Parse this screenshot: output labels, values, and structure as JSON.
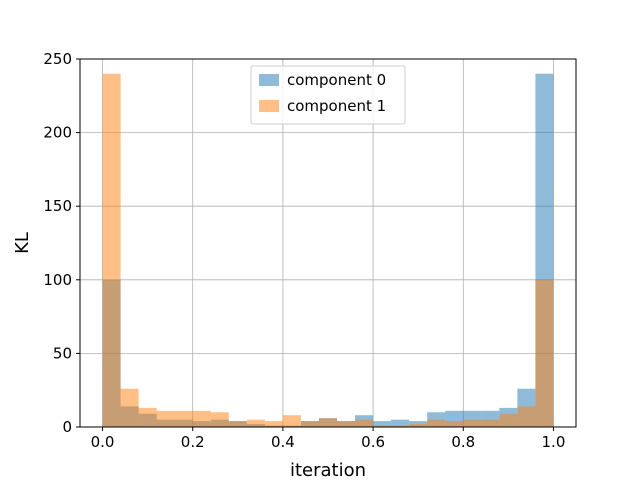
{
  "chart_data": {
    "type": "bar",
    "subtype": "histogram",
    "xlabel": "iteration",
    "ylabel": "KL",
    "xlim": [
      -0.05,
      1.05
    ],
    "ylim": [
      0,
      250
    ],
    "xticks": [
      0.0,
      0.2,
      0.4,
      0.6,
      0.8,
      1.0
    ],
    "xtick_labels": [
      "0.0",
      "0.2",
      "0.4",
      "0.6",
      "0.8",
      "1.0"
    ],
    "yticks": [
      0,
      50,
      100,
      150,
      200,
      250
    ],
    "ytick_labels": [
      "0",
      "50",
      "100",
      "150",
      "200",
      "250"
    ],
    "grid": true,
    "legend_position": "top-center",
    "bin_edges": [
      0.0,
      0.04,
      0.08,
      0.12,
      0.16,
      0.2,
      0.24,
      0.28,
      0.32,
      0.36,
      0.4,
      0.44,
      0.48,
      0.52,
      0.56,
      0.6,
      0.64,
      0.68,
      0.72,
      0.76,
      0.8,
      0.84,
      0.88,
      0.92,
      0.96,
      1.0
    ],
    "series": [
      {
        "name": "component 0",
        "color": "#1f77b4",
        "alpha": 0.5,
        "values": [
          100,
          14,
          9,
          5,
          5,
          4,
          5,
          4,
          2,
          1,
          1,
          4,
          6,
          4,
          8,
          4,
          5,
          4,
          10,
          11,
          11,
          11,
          13,
          26,
          240
        ]
      },
      {
        "name": "component 1",
        "color": "#ff7f0e",
        "alpha": 0.5,
        "values": [
          240,
          26,
          13,
          11,
          11,
          11,
          10,
          4,
          5,
          4,
          8,
          4,
          6,
          4,
          5,
          1,
          1,
          2,
          5,
          4,
          5,
          5,
          9,
          14,
          100
        ]
      }
    ]
  }
}
